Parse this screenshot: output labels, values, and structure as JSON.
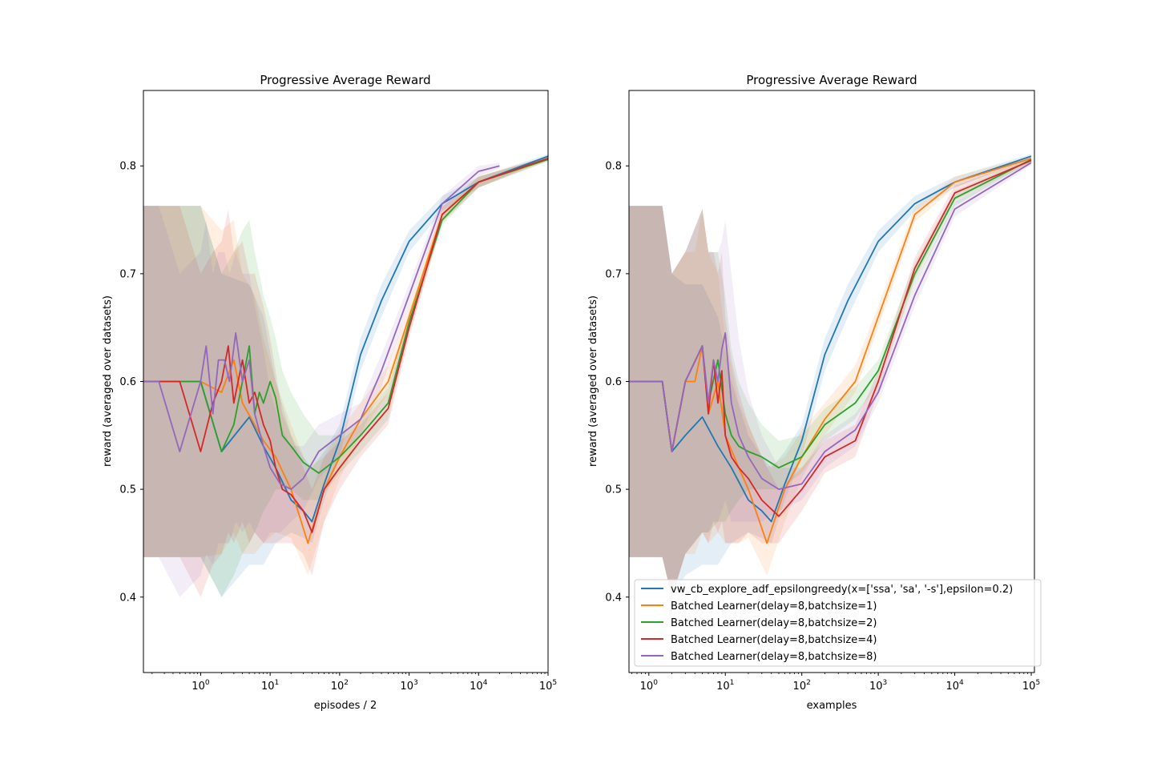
{
  "figure": {
    "colors": [
      "#1f77b4",
      "#ff7f0e",
      "#2ca02c",
      "#d62728",
      "#9467bd"
    ]
  },
  "legend": {
    "entries": [
      "vw_cb_explore_adf_epsilongreedy(x=['ssa', 'sa', '-s'],epsilon=0.2)",
      "Batched Learner(delay=8,batchsize=1)",
      "Batched Learner(delay=8,batchsize=2)",
      "Batched Learner(delay=8,batchsize=4)",
      "Batched Learner(delay=8,batchsize=8)"
    ],
    "location": "lower-right of right panel"
  },
  "chart_data": [
    {
      "type": "line",
      "title": "Progressive Average Reward",
      "xlabel": "episodes / 2",
      "ylabel": "reward (averaged over datasets)",
      "xscale": "log",
      "xlim": [
        0.15,
        100000
      ],
      "ylim": [
        0.33,
        0.87
      ],
      "xticks": [
        1,
        10,
        100,
        1000,
        10000,
        100000
      ],
      "xtick_labels": [
        [
          "10",
          "0"
        ],
        [
          "10",
          "1"
        ],
        [
          "10",
          "2"
        ],
        [
          "10",
          "3"
        ],
        [
          "10",
          "4"
        ],
        [
          "10",
          "5"
        ]
      ],
      "yticks": [
        0.4,
        0.5,
        0.6,
        0.7,
        0.8
      ],
      "ytick_labels": [
        "0.4",
        "0.5",
        "0.6",
        "0.7",
        "0.8"
      ],
      "grid": false,
      "series": [
        {
          "name": "vw_cb_explore_adf_epsilongreedy(x=['ssa', 'sa', '-s'],epsilon=0.2)",
          "x": [
            0.15,
            1,
            2,
            5,
            8,
            12,
            20,
            30,
            40,
            60,
            100,
            200,
            400,
            1000,
            3000,
            10000,
            100000
          ],
          "y": [
            0.6,
            0.6,
            0.535,
            0.567,
            0.54,
            0.52,
            0.49,
            0.48,
            0.47,
            0.505,
            0.545,
            0.625,
            0.675,
            0.73,
            0.765,
            0.785,
            0.809
          ],
          "lo": [
            0.437,
            0.437,
            0.4,
            0.43,
            0.43,
            0.45,
            0.46,
            0.455,
            0.45,
            0.49,
            0.53,
            0.61,
            0.66,
            0.72,
            0.758,
            0.78,
            0.807
          ],
          "hi": [
            0.763,
            0.763,
            0.7,
            0.69,
            0.66,
            0.6,
            0.55,
            0.53,
            0.52,
            0.535,
            0.56,
            0.64,
            0.69,
            0.74,
            0.772,
            0.79,
            0.811
          ]
        },
        {
          "name": "Batched Learner(delay=8,batchsize=1)",
          "x": [
            0.15,
            0.5,
            1,
            2,
            3,
            4,
            6,
            8,
            12,
            20,
            35,
            60,
            100,
            200,
            500,
            1000,
            3000,
            10000,
            100000
          ],
          "y": [
            0.6,
            0.6,
            0.6,
            0.59,
            0.62,
            0.58,
            0.56,
            0.545,
            0.53,
            0.5,
            0.45,
            0.5,
            0.53,
            0.565,
            0.6,
            0.66,
            0.755,
            0.785,
            0.807
          ],
          "lo": [
            0.437,
            0.437,
            0.437,
            0.44,
            0.46,
            0.44,
            0.44,
            0.45,
            0.46,
            0.455,
            0.42,
            0.47,
            0.51,
            0.55,
            0.59,
            0.65,
            0.748,
            0.78,
            0.805
          ],
          "hi": [
            0.763,
            0.763,
            0.763,
            0.74,
            0.75,
            0.7,
            0.68,
            0.64,
            0.6,
            0.56,
            0.52,
            0.53,
            0.555,
            0.58,
            0.615,
            0.67,
            0.762,
            0.79,
            0.809
          ]
        },
        {
          "name": "Batched Learner(delay=8,batchsize=2)",
          "x": [
            0.15,
            1,
            2,
            3,
            4,
            5,
            6,
            7,
            8,
            10,
            12,
            15,
            20,
            30,
            50,
            100,
            200,
            500,
            1000,
            3000,
            10000,
            100000
          ],
          "y": [
            0.6,
            0.6,
            0.535,
            0.56,
            0.6,
            0.633,
            0.57,
            0.59,
            0.58,
            0.6,
            0.585,
            0.55,
            0.54,
            0.525,
            0.515,
            0.53,
            0.55,
            0.58,
            0.655,
            0.75,
            0.785,
            0.806
          ],
          "lo": [
            0.437,
            0.437,
            0.4,
            0.42,
            0.44,
            0.45,
            0.46,
            0.47,
            0.48,
            0.49,
            0.5,
            0.5,
            0.5,
            0.49,
            0.49,
            0.515,
            0.535,
            0.565,
            0.645,
            0.745,
            0.78,
            0.804
          ],
          "hi": [
            0.763,
            0.763,
            0.7,
            0.72,
            0.74,
            0.75,
            0.72,
            0.7,
            0.68,
            0.66,
            0.64,
            0.61,
            0.59,
            0.57,
            0.55,
            0.55,
            0.565,
            0.595,
            0.665,
            0.757,
            0.79,
            0.808
          ]
        },
        {
          "name": "Batched Learner(delay=8,batchsize=4)",
          "x": [
            0.15,
            0.5,
            1,
            1.5,
            2,
            2.5,
            3,
            4,
            5,
            6,
            8,
            10,
            12,
            15,
            20,
            30,
            40,
            60,
            100,
            200,
            500,
            1000,
            3000,
            10000,
            100000
          ],
          "y": [
            0.6,
            0.6,
            0.535,
            0.58,
            0.6,
            0.633,
            0.58,
            0.62,
            0.58,
            0.59,
            0.56,
            0.545,
            0.52,
            0.5,
            0.495,
            0.48,
            0.46,
            0.5,
            0.52,
            0.545,
            0.575,
            0.65,
            0.755,
            0.785,
            0.807
          ],
          "lo": [
            0.437,
            0.437,
            0.4,
            0.43,
            0.44,
            0.46,
            0.45,
            0.47,
            0.45,
            0.46,
            0.45,
            0.45,
            0.45,
            0.45,
            0.45,
            0.44,
            0.42,
            0.47,
            0.5,
            0.53,
            0.56,
            0.64,
            0.748,
            0.78,
            0.805
          ],
          "hi": [
            0.763,
            0.763,
            0.7,
            0.72,
            0.73,
            0.76,
            0.72,
            0.73,
            0.7,
            0.7,
            0.67,
            0.64,
            0.61,
            0.57,
            0.55,
            0.52,
            0.5,
            0.53,
            0.545,
            0.56,
            0.59,
            0.66,
            0.762,
            0.79,
            0.809
          ]
        },
        {
          "name": "Batched Learner(delay=8,batchsize=8)",
          "x": [
            0.15,
            0.25,
            0.5,
            1,
            1.2,
            1.5,
            1.8,
            2.2,
            2.6,
            3.2,
            4,
            5,
            6,
            8,
            10,
            14,
            20,
            30,
            50,
            100,
            200,
            400,
            1000,
            3000,
            10000,
            20000
          ],
          "y": [
            0.6,
            0.6,
            0.535,
            0.6,
            0.633,
            0.57,
            0.62,
            0.62,
            0.6,
            0.645,
            0.6,
            0.62,
            0.57,
            0.54,
            0.52,
            0.505,
            0.5,
            0.51,
            0.535,
            0.55,
            0.565,
            0.61,
            0.68,
            0.765,
            0.795,
            0.8
          ],
          "lo": [
            0.437,
            0.437,
            0.4,
            0.42,
            0.44,
            0.43,
            0.45,
            0.45,
            0.45,
            0.47,
            0.46,
            0.47,
            0.46,
            0.45,
            0.46,
            0.46,
            0.47,
            0.48,
            0.51,
            0.53,
            0.55,
            0.595,
            0.67,
            0.758,
            0.79,
            0.798
          ],
          "hi": [
            0.763,
            0.763,
            0.7,
            0.72,
            0.75,
            0.7,
            0.72,
            0.72,
            0.7,
            0.72,
            0.7,
            0.7,
            0.67,
            0.63,
            0.59,
            0.56,
            0.54,
            0.54,
            0.56,
            0.57,
            0.58,
            0.625,
            0.69,
            0.772,
            0.8,
            0.803
          ]
        }
      ]
    },
    {
      "type": "line",
      "title": "Progressive Average Reward",
      "xlabel": "examples",
      "ylabel": "reward (averaged over datasets)",
      "xscale": "log",
      "xlim": [
        0.55,
        110000
      ],
      "ylim": [
        0.33,
        0.87
      ],
      "xticks": [
        1,
        10,
        100,
        1000,
        10000,
        100000
      ],
      "xtick_labels": [
        [
          "10",
          "0"
        ],
        [
          "10",
          "1"
        ],
        [
          "10",
          "2"
        ],
        [
          "10",
          "3"
        ],
        [
          "10",
          "4"
        ],
        [
          "10",
          "5"
        ]
      ],
      "yticks": [
        0.4,
        0.5,
        0.6,
        0.7,
        0.8
      ],
      "ytick_labels": [
        "0.4",
        "0.5",
        "0.6",
        "0.7",
        "0.8"
      ],
      "grid": false,
      "series": [
        {
          "name": "vw_cb_explore_adf_epsilongreedy(x=['ssa', 'sa', '-s'],epsilon=0.2)",
          "x": [
            0.55,
            1,
            1.5,
            2,
            3,
            5,
            8,
            12,
            20,
            30,
            40,
            60,
            100,
            200,
            400,
            1000,
            3000,
            10000,
            100000
          ],
          "y": [
            0.6,
            0.6,
            0.6,
            0.535,
            0.55,
            0.567,
            0.54,
            0.52,
            0.49,
            0.48,
            0.47,
            0.505,
            0.545,
            0.625,
            0.675,
            0.73,
            0.765,
            0.785,
            0.809
          ],
          "lo": [
            0.437,
            0.437,
            0.437,
            0.4,
            0.42,
            0.43,
            0.43,
            0.45,
            0.46,
            0.455,
            0.45,
            0.49,
            0.53,
            0.61,
            0.66,
            0.72,
            0.758,
            0.78,
            0.807
          ],
          "hi": [
            0.763,
            0.763,
            0.763,
            0.7,
            0.69,
            0.69,
            0.66,
            0.6,
            0.55,
            0.53,
            0.52,
            0.535,
            0.56,
            0.64,
            0.69,
            0.74,
            0.772,
            0.79,
            0.811
          ]
        },
        {
          "name": "Batched Learner(delay=8,batchsize=1)",
          "x": [
            0.55,
            1,
            1.5,
            2,
            3,
            4,
            5,
            6,
            8,
            10,
            15,
            20,
            35,
            60,
            100,
            200,
            500,
            1000,
            3000,
            10000,
            100000
          ],
          "y": [
            0.6,
            0.6,
            0.6,
            0.535,
            0.6,
            0.6,
            0.633,
            0.57,
            0.6,
            0.55,
            0.52,
            0.5,
            0.45,
            0.5,
            0.53,
            0.565,
            0.6,
            0.66,
            0.755,
            0.785,
            0.807
          ],
          "lo": [
            0.437,
            0.437,
            0.437,
            0.4,
            0.44,
            0.44,
            0.46,
            0.45,
            0.46,
            0.45,
            0.45,
            0.455,
            0.42,
            0.47,
            0.51,
            0.55,
            0.59,
            0.65,
            0.748,
            0.78,
            0.805
          ],
          "hi": [
            0.763,
            0.763,
            0.763,
            0.7,
            0.72,
            0.72,
            0.76,
            0.72,
            0.7,
            0.64,
            0.58,
            0.56,
            0.52,
            0.53,
            0.555,
            0.58,
            0.615,
            0.67,
            0.762,
            0.79,
            0.809
          ]
        },
        {
          "name": "Batched Learner(delay=8,batchsize=2)",
          "x": [
            0.55,
            1,
            1.5,
            2,
            3,
            5,
            6,
            8,
            10,
            12,
            15,
            20,
            30,
            50,
            100,
            200,
            500,
            1000,
            3000,
            10000,
            100000
          ],
          "y": [
            0.6,
            0.6,
            0.6,
            0.535,
            0.6,
            0.633,
            0.58,
            0.62,
            0.57,
            0.55,
            0.54,
            0.535,
            0.53,
            0.52,
            0.53,
            0.56,
            0.58,
            0.61,
            0.7,
            0.77,
            0.806
          ],
          "lo": [
            0.437,
            0.437,
            0.437,
            0.4,
            0.44,
            0.46,
            0.46,
            0.47,
            0.47,
            0.48,
            0.49,
            0.5,
            0.5,
            0.5,
            0.515,
            0.545,
            0.565,
            0.6,
            0.69,
            0.763,
            0.804
          ],
          "hi": [
            0.763,
            0.763,
            0.763,
            0.7,
            0.72,
            0.76,
            0.72,
            0.72,
            0.68,
            0.63,
            0.6,
            0.58,
            0.56,
            0.545,
            0.55,
            0.575,
            0.595,
            0.62,
            0.71,
            0.777,
            0.808
          ]
        },
        {
          "name": "Batched Learner(delay=8,batchsize=4)",
          "x": [
            0.55,
            1,
            1.5,
            2,
            3,
            5,
            6,
            7,
            8,
            9,
            10,
            12,
            15,
            20,
            30,
            50,
            100,
            200,
            500,
            1000,
            3000,
            10000,
            100000
          ],
          "y": [
            0.6,
            0.6,
            0.6,
            0.535,
            0.6,
            0.633,
            0.57,
            0.62,
            0.58,
            0.61,
            0.55,
            0.53,
            0.52,
            0.51,
            0.49,
            0.475,
            0.5,
            0.53,
            0.545,
            0.6,
            0.705,
            0.775,
            0.805
          ],
          "lo": [
            0.437,
            0.437,
            0.437,
            0.4,
            0.44,
            0.46,
            0.45,
            0.47,
            0.46,
            0.47,
            0.45,
            0.45,
            0.45,
            0.46,
            0.45,
            0.45,
            0.48,
            0.515,
            0.53,
            0.59,
            0.695,
            0.768,
            0.803
          ],
          "hi": [
            0.763,
            0.763,
            0.763,
            0.7,
            0.72,
            0.76,
            0.72,
            0.72,
            0.7,
            0.72,
            0.66,
            0.62,
            0.59,
            0.56,
            0.53,
            0.5,
            0.52,
            0.545,
            0.56,
            0.61,
            0.715,
            0.782,
            0.807
          ]
        },
        {
          "name": "Batched Learner(delay=8,batchsize=8)",
          "x": [
            0.55,
            1,
            1.5,
            2,
            3,
            5,
            6,
            7,
            8,
            9,
            10,
            12,
            15,
            20,
            30,
            50,
            100,
            200,
            500,
            1000,
            3000,
            10000,
            100000
          ],
          "y": [
            0.6,
            0.6,
            0.6,
            0.535,
            0.6,
            0.633,
            0.58,
            0.62,
            0.6,
            0.63,
            0.645,
            0.58,
            0.55,
            0.53,
            0.51,
            0.5,
            0.505,
            0.535,
            0.555,
            0.59,
            0.68,
            0.76,
            0.803
          ],
          "lo": [
            0.437,
            0.437,
            0.437,
            0.4,
            0.44,
            0.46,
            0.46,
            0.47,
            0.47,
            0.48,
            0.49,
            0.47,
            0.47,
            0.47,
            0.47,
            0.48,
            0.49,
            0.52,
            0.54,
            0.58,
            0.67,
            0.753,
            0.801
          ],
          "hi": [
            0.763,
            0.763,
            0.763,
            0.7,
            0.72,
            0.76,
            0.72,
            0.72,
            0.72,
            0.73,
            0.75,
            0.7,
            0.64,
            0.59,
            0.55,
            0.52,
            0.52,
            0.55,
            0.57,
            0.6,
            0.69,
            0.767,
            0.805
          ]
        }
      ]
    }
  ]
}
